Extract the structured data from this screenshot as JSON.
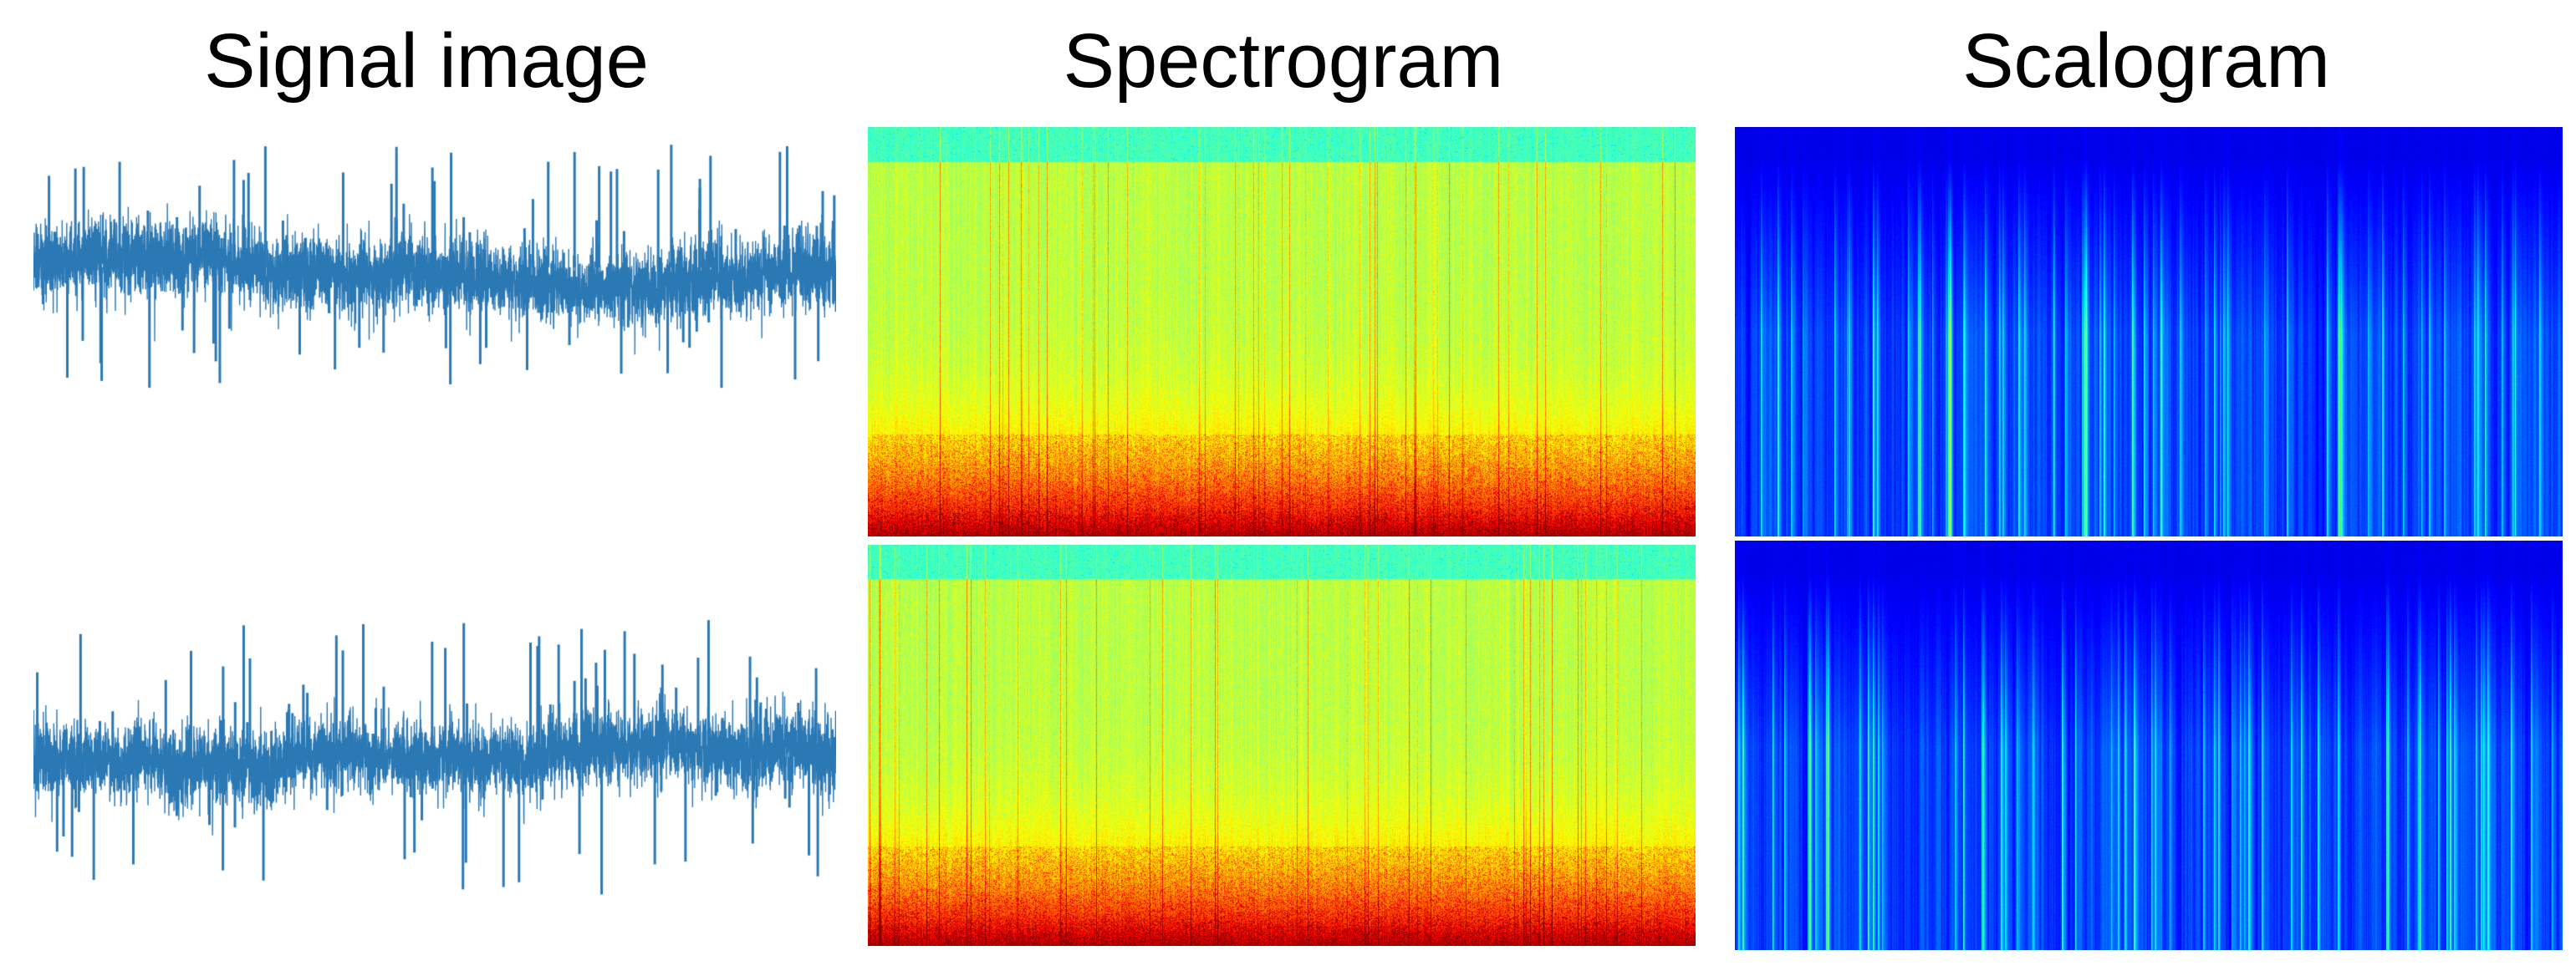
{
  "titles": {
    "signal": "Signal image",
    "spectrogram": "Spectrogram",
    "scalogram": "Scalogram"
  },
  "colors": {
    "signal_line": "#2a78b4",
    "background": "#ffffff"
  },
  "panels": {
    "signal": {
      "rows": 2,
      "kind": "time-series waveform"
    },
    "spectrogram": {
      "rows": 2,
      "colormap": "jet"
    },
    "scalogram": {
      "rows": 2,
      "colormap": "jet"
    }
  }
}
